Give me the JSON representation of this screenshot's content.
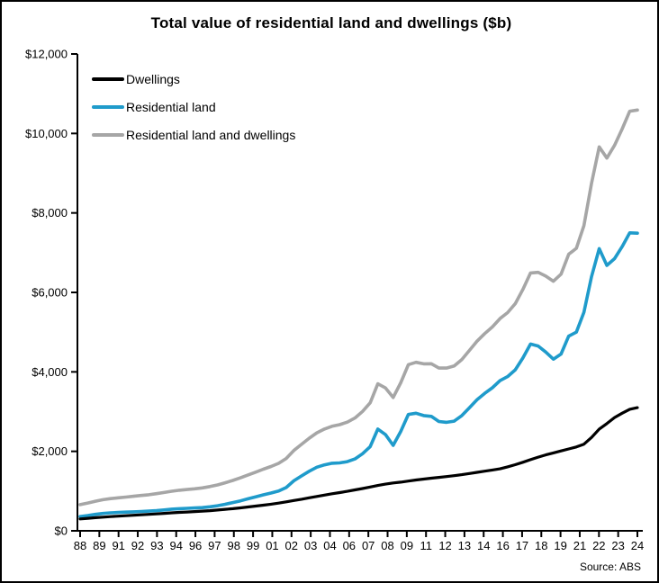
{
  "chart_data": {
    "type": "line",
    "title": "Total value of residential land and dwellings ($b)",
    "source": "Source: ABS",
    "grid": false,
    "legend_position": "top-left",
    "background": "#ffffff",
    "axis_color": "#000000",
    "ylim": [
      0,
      12000
    ],
    "y_tick_step": 2000,
    "y_tick_labels_top_to_bottom": [
      "$12,000",
      "$10,000",
      "$8,000",
      "$6,000",
      "$4,000",
      "$2,000",
      "$0"
    ],
    "x_tick_labels": [
      "88",
      "89",
      "91",
      "92",
      "93",
      "94",
      "96",
      "97",
      "98",
      "99",
      "01",
      "02",
      "03",
      "04",
      "06",
      "07",
      "08",
      "09",
      "11",
      "12",
      "13",
      "14",
      "16",
      "17",
      "18",
      "19",
      "21",
      "22",
      "23",
      "24"
    ],
    "x_start": 1988.25,
    "x_step": 0.5,
    "x_end": 2024.75,
    "units": "billions of dollars",
    "series": [
      {
        "name": "Dwellings",
        "color": "#000000",
        "line_width": 3.2,
        "values": [
          300,
          315,
          330,
          345,
          358,
          370,
          380,
          392,
          403,
          414,
          426,
          440,
          452,
          464,
          474,
          484,
          495,
          508,
          522,
          540,
          558,
          578,
          600,
          622,
          645,
          670,
          698,
          730,
          762,
          795,
          830,
          865,
          900,
          932,
          962,
          995,
          1030,
          1065,
          1102,
          1140,
          1175,
          1205,
          1225,
          1252,
          1280,
          1303,
          1325,
          1345,
          1365,
          1388,
          1412,
          1442,
          1472,
          1502,
          1530,
          1560,
          1610,
          1665,
          1725,
          1790,
          1855,
          1910,
          1960,
          2010,
          2060,
          2110,
          2180,
          2350,
          2560,
          2700,
          2850,
          2960,
          3060,
          3100
        ]
      },
      {
        "name": "Residential land",
        "color": "#1F9BCB",
        "line_width": 3.6,
        "values": [
          360,
          385,
          415,
          438,
          452,
          462,
          470,
          478,
          486,
          495,
          508,
          525,
          545,
          558,
          566,
          574,
          585,
          605,
          632,
          668,
          710,
          755,
          805,
          855,
          905,
          950,
          1000,
          1090,
          1260,
          1380,
          1500,
          1600,
          1660,
          1700,
          1710,
          1740,
          1810,
          1940,
          2120,
          2560,
          2420,
          2150,
          2500,
          2930,
          2960,
          2900,
          2880,
          2750,
          2730,
          2760,
          2900,
          3100,
          3300,
          3460,
          3600,
          3780,
          3880,
          4050,
          4350,
          4700,
          4650,
          4500,
          4320,
          4450,
          4900,
          5000,
          5500,
          6400,
          7100,
          6680,
          6850,
          7150,
          7500,
          7490
        ]
      },
      {
        "name": "Residential land and dwellings",
        "color": "#A6A6A6",
        "line_width": 3.6,
        "values": [
          660,
          700,
          745,
          783,
          810,
          832,
          850,
          870,
          889,
          909,
          934,
          965,
          997,
          1022,
          1040,
          1058,
          1080,
          1113,
          1154,
          1208,
          1268,
          1333,
          1405,
          1477,
          1550,
          1620,
          1698,
          1820,
          2022,
          2175,
          2330,
          2465,
          2560,
          2632,
          2672,
          2735,
          2840,
          3005,
          3222,
          3700,
          3595,
          3355,
          3725,
          4182,
          4240,
          4203,
          4205,
          4095,
          4095,
          4148,
          4312,
          4542,
          4772,
          4962,
          5130,
          5340,
          5490,
          5715,
          6075,
          6490,
          6505,
          6410,
          6280,
          6460,
          6960,
          7110,
          7680,
          8750,
          9660,
          9380,
          9700,
          10110,
          10560,
          10590
        ]
      }
    ]
  }
}
